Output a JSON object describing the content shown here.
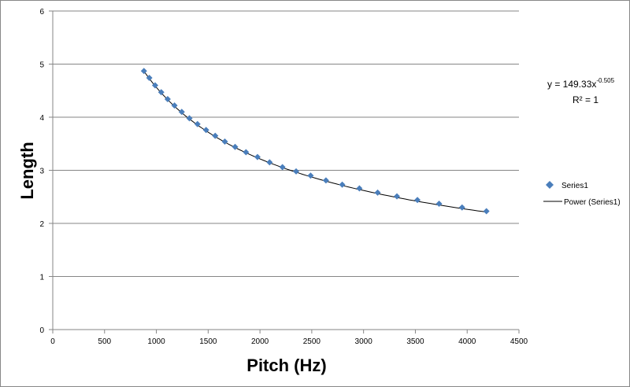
{
  "chart_data": {
    "type": "scatter",
    "xlabel": "Pitch (Hz)",
    "ylabel": "Length",
    "xlim": [
      0,
      4500
    ],
    "ylim": [
      0,
      6
    ],
    "x_ticks": [
      "0",
      "500",
      "1000",
      "1500",
      "2000",
      "2500",
      "3000",
      "3500",
      "4000",
      "4500"
    ],
    "y_ticks": [
      "0",
      "1",
      "2",
      "3",
      "4",
      "5",
      "6"
    ],
    "grid": "horizontal",
    "legend_position": "right",
    "series": [
      {
        "name": "Series1",
        "marker": "diamond",
        "color": "#4a7ebb",
        "x": [
          880,
          932,
          988,
          1047,
          1109,
          1175,
          1245,
          1319,
          1397,
          1480,
          1568,
          1661,
          1760,
          1865,
          1976,
          2093,
          2217,
          2349,
          2489,
          2637,
          2794,
          2960,
          3136,
          3322,
          3520,
          3729,
          3951,
          4186
        ],
        "y": [
          4.87,
          4.74,
          4.6,
          4.47,
          4.34,
          4.22,
          4.1,
          3.98,
          3.87,
          3.76,
          3.65,
          3.54,
          3.44,
          3.34,
          3.25,
          3.15,
          3.06,
          2.98,
          2.9,
          2.81,
          2.73,
          2.66,
          2.58,
          2.51,
          2.44,
          2.37,
          2.3,
          2.23
        ]
      }
    ],
    "trendline": {
      "name": "Power (Series1)",
      "type": "power",
      "coefficient": 149.33,
      "exponent": -0.505,
      "color": "#000000",
      "equation_prefix": "y = 149.33x",
      "equation_exponent": "-0.505",
      "r_squared": "R² = 1"
    }
  }
}
